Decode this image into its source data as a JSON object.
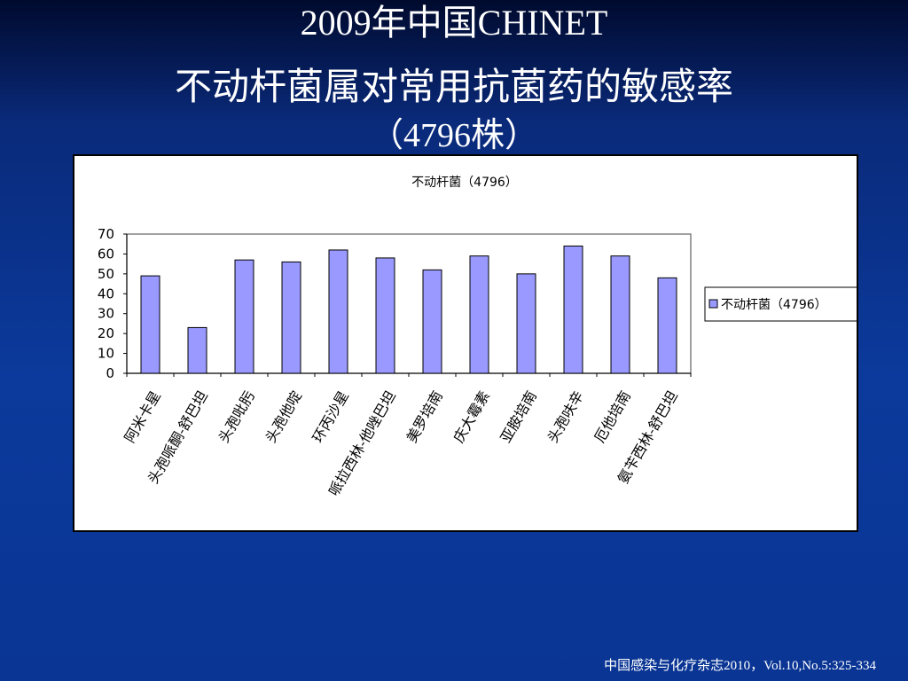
{
  "slide": {
    "title_line1": "2009年中国CHINET",
    "title_line2": "不动杆菌属对常用抗菌药的敏感率",
    "title_line3": "（4796株）",
    "footer": "中国感染与化疗杂志2010，Vol.10,No.5:325-334"
  },
  "colors": {
    "bar_fill": "#9999ff",
    "bar_stroke": "#000000",
    "background": "#0b3a9c"
  },
  "chart_data": {
    "type": "bar",
    "title": "不动杆菌（4796）",
    "categories": [
      "阿米卡星",
      "头孢哌酮-舒巴坦",
      "头孢吡肟",
      "头孢他啶",
      "环丙沙星",
      "哌拉西林-他唑巴坦",
      "美罗培南",
      "庆大霉素",
      "亚胺培南",
      "头孢呋辛",
      "厄他培南",
      "氨苄西林-舒巴坦"
    ],
    "series": [
      {
        "name": "不动杆菌（4796）",
        "values": [
          49,
          23,
          57,
          56,
          62,
          58,
          52,
          59,
          50,
          64,
          59,
          48
        ]
      }
    ],
    "yticks": [
      "0",
      "10",
      "20",
      "30",
      "40",
      "50",
      "60",
      "70"
    ],
    "ylim": [
      0,
      70
    ],
    "xlabel": "",
    "ylabel": "",
    "legend_position": "right",
    "grid": false
  }
}
